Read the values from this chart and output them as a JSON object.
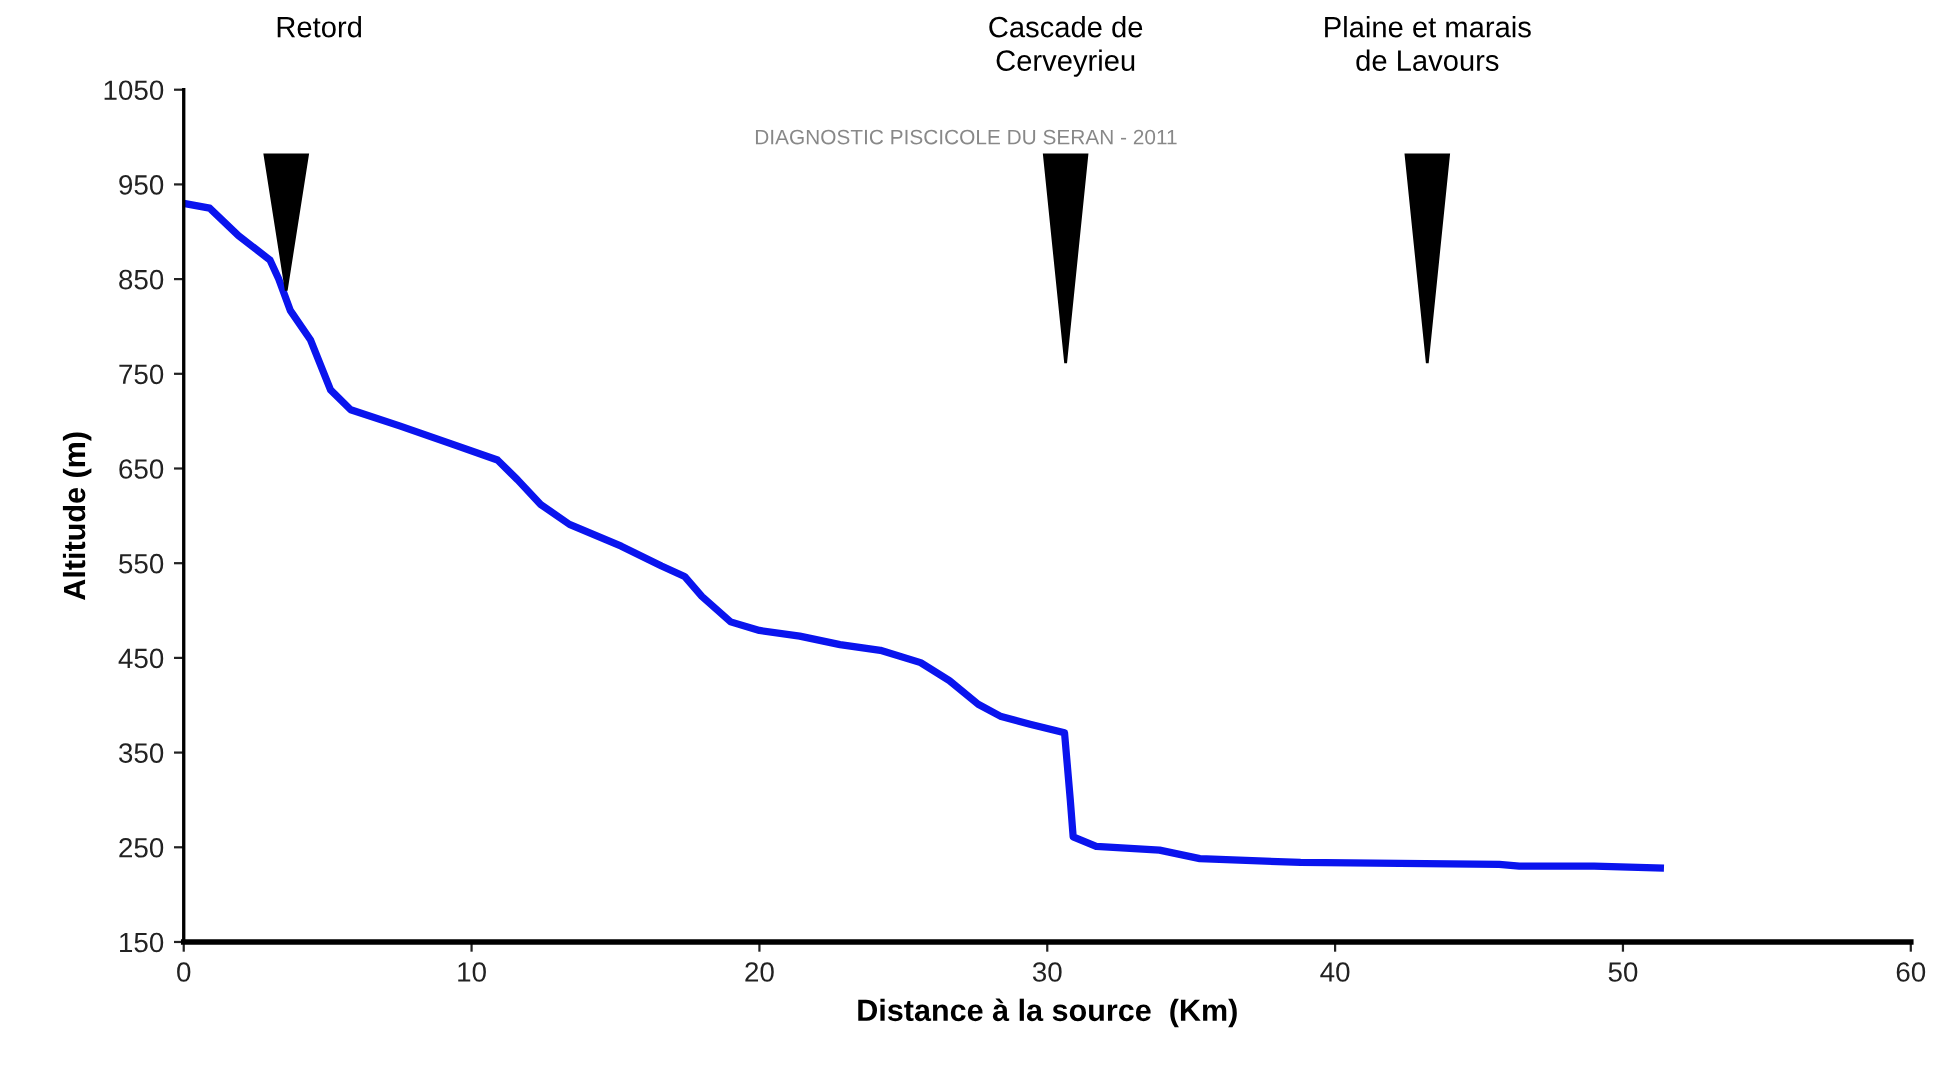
{
  "chart_data": {
    "type": "line",
    "xlabel": "Distance à la source  (Km)",
    "ylabel": "Altitude (m)",
    "xlim": [
      0,
      60
    ],
    "xticks": [
      0,
      10,
      20,
      30,
      40,
      50,
      60
    ],
    "ylim": [
      150,
      1050
    ],
    "yticks": [
      150,
      250,
      350,
      450,
      550,
      650,
      750,
      850,
      950,
      1050
    ],
    "grid": false,
    "legend": false,
    "series": [
      {
        "color": "#0a14ee",
        "x": [
          0,
          0.9,
          1.9,
          3.0,
          3.3,
          3.7,
          4.4,
          5.1,
          5.8,
          7.5,
          9.3,
          10.9,
          11.6,
          12.4,
          13.4,
          15.2,
          16.6,
          17.4,
          18.0,
          19.0,
          20.0,
          21.4,
          22.8,
          24.2,
          25.6,
          26.6,
          27.6,
          28.4,
          29.4,
          30.6,
          30.8,
          30.9,
          31.7,
          33.9,
          35.3,
          38.8,
          45.7,
          46.4,
          49.0,
          51.3
        ],
        "values": [
          930,
          925,
          896,
          870,
          850,
          817,
          786,
          733,
          712,
          695,
          676,
          659,
          638,
          612,
          591,
          568,
          547,
          536,
          515,
          488,
          479,
          473,
          464,
          458,
          445,
          426,
          401,
          388,
          380,
          371,
          300,
          261,
          251,
          247,
          238,
          234,
          232,
          230,
          230,
          228
        ]
      }
    ],
    "annotations": [
      "Retord",
      "Cascade de\nCerveyrieu",
      "Plaine et marais\nde Lavours",
      "DIAGNOSTIC PISCICOLE DU SERAN - 2011"
    ]
  }
}
